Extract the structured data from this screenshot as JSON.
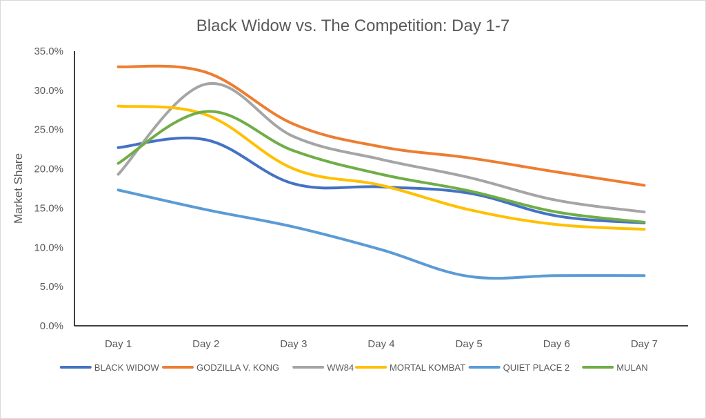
{
  "chart_data": {
    "type": "line",
    "title": "Black Widow vs. The Competition: Day 1-7",
    "xlabel": "",
    "ylabel": "Market Share",
    "categories": [
      "Day 1",
      "Day 2",
      "Day 3",
      "Day 4",
      "Day 5",
      "Day 6",
      "Day 7"
    ],
    "ylim": [
      0,
      35
    ],
    "yticks": [
      "0.0%",
      "5.0%",
      "10.0%",
      "15.0%",
      "20.0%",
      "25.0%",
      "30.0%",
      "35.0%"
    ],
    "grid": false,
    "legend_position": "bottom",
    "series": [
      {
        "name": "BLACK WIDOW",
        "color": "#4472C4",
        "values": [
          22.7,
          23.7,
          18.1,
          17.7,
          16.9,
          14.0,
          13.1
        ]
      },
      {
        "name": "GODZILLA V. KONG",
        "color": "#ED7D31",
        "values": [
          33.0,
          32.3,
          25.7,
          22.8,
          21.4,
          19.6,
          17.9
        ]
      },
      {
        "name": "WW84",
        "color": "#A5A5A5",
        "values": [
          19.3,
          30.8,
          24.1,
          21.2,
          18.9,
          16.0,
          14.5
        ]
      },
      {
        "name": "MORTAL KOMBAT",
        "color": "#FFC000",
        "values": [
          28.0,
          26.9,
          20.0,
          17.9,
          14.8,
          12.9,
          12.3
        ]
      },
      {
        "name": "QUIET PLACE 2",
        "color": "#5B9BD5",
        "values": [
          17.3,
          14.8,
          12.6,
          9.7,
          6.3,
          6.4,
          6.4
        ]
      },
      {
        "name": "MULAN",
        "color": "#70AD47",
        "values": [
          20.7,
          27.3,
          22.3,
          19.3,
          17.2,
          14.5,
          13.2
        ]
      }
    ]
  }
}
